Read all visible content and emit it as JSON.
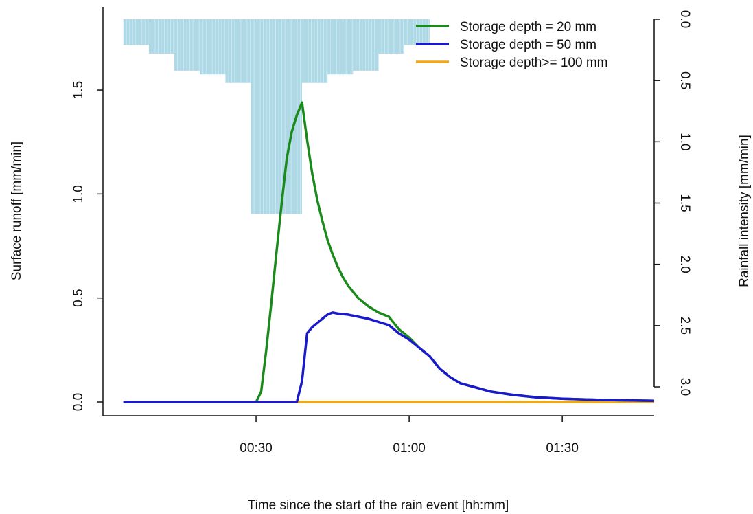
{
  "chart_data": {
    "type": "line",
    "title": "",
    "xlabel": "Time since the start of the rain event [hh:mm]",
    "ylabel": "Surface runoff [mm/min]",
    "y2label": "Rainfall intensity [mm/min]",
    "xlim": [
      0,
      108
    ],
    "ylim": [
      0,
      1.9
    ],
    "y2lim_reversed": [
      0,
      3.1
    ],
    "x_ticks": [
      {
        "v": 30,
        "label": "00:30"
      },
      {
        "v": 60,
        "label": "01:00"
      },
      {
        "v": 90,
        "label": "01:30"
      }
    ],
    "y_ticks": [
      {
        "v": 0.0,
        "label": "0.0"
      },
      {
        "v": 0.5,
        "label": "0.5"
      },
      {
        "v": 1.0,
        "label": "1.0"
      },
      {
        "v": 1.5,
        "label": "1.5"
      }
    ],
    "y2_ticks": [
      {
        "v": 0.0,
        "label": "0.0"
      },
      {
        "v": 0.5,
        "label": "0.5"
      },
      {
        "v": 1.0,
        "label": "1.0"
      },
      {
        "v": 1.5,
        "label": "1.5"
      },
      {
        "v": 2.0,
        "label": "2.0"
      },
      {
        "v": 2.5,
        "label": "2.5"
      },
      {
        "v": 3.0,
        "label": "3.0"
      }
    ],
    "legend_position": "top-right",
    "rainfall": {
      "color": "#add8e6",
      "bars": [
        {
          "x0": 4,
          "x1": 9,
          "v": 0.21
        },
        {
          "x0": 9,
          "x1": 14,
          "v": 0.28
        },
        {
          "x0": 14,
          "x1": 19,
          "v": 0.42
        },
        {
          "x0": 19,
          "x1": 24,
          "v": 0.45
        },
        {
          "x0": 24,
          "x1": 29,
          "v": 0.52
        },
        {
          "x0": 29,
          "x1": 39,
          "v": 1.59
        },
        {
          "x0": 39,
          "x1": 44,
          "v": 0.52
        },
        {
          "x0": 44,
          "x1": 49,
          "v": 0.45
        },
        {
          "x0": 49,
          "x1": 54,
          "v": 0.42
        },
        {
          "x0": 54,
          "x1": 59,
          "v": 0.28
        },
        {
          "x0": 59,
          "x1": 64,
          "v": 0.21
        }
      ]
    },
    "series": [
      {
        "name": "Storage depth = 20 mm",
        "color": "#1a8a1a",
        "points": [
          [
            4,
            0
          ],
          [
            30,
            0
          ],
          [
            31,
            0.05
          ],
          [
            32,
            0.25
          ],
          [
            33,
            0.48
          ],
          [
            34,
            0.72
          ],
          [
            35,
            0.95
          ],
          [
            36,
            1.17
          ],
          [
            37,
            1.3
          ],
          [
            38,
            1.38
          ],
          [
            39,
            1.44
          ],
          [
            40,
            1.26
          ],
          [
            41,
            1.1
          ],
          [
            42,
            0.97
          ],
          [
            43,
            0.87
          ],
          [
            44,
            0.78
          ],
          [
            45,
            0.71
          ],
          [
            46,
            0.65
          ],
          [
            47,
            0.6
          ],
          [
            48,
            0.56
          ],
          [
            49,
            0.53
          ],
          [
            50,
            0.5
          ],
          [
            52,
            0.46
          ],
          [
            54,
            0.43
          ],
          [
            56,
            0.41
          ],
          [
            58,
            0.35
          ],
          [
            60,
            0.31
          ],
          [
            62,
            0.26
          ],
          [
            64,
            0.22
          ],
          [
            66,
            0.16
          ],
          [
            68,
            0.12
          ],
          [
            70,
            0.09
          ],
          [
            73,
            0.07
          ],
          [
            76,
            0.05
          ],
          [
            80,
            0.035
          ],
          [
            85,
            0.022
          ],
          [
            90,
            0.016
          ],
          [
            95,
            0.012
          ],
          [
            100,
            0.009
          ],
          [
            108,
            0.006
          ]
        ]
      },
      {
        "name": "Storage depth = 50 mm",
        "color": "#1a1acc",
        "points": [
          [
            4,
            0
          ],
          [
            38,
            0
          ],
          [
            39,
            0.1
          ],
          [
            40,
            0.33
          ],
          [
            41,
            0.36
          ],
          [
            42,
            0.38
          ],
          [
            43,
            0.4
          ],
          [
            44,
            0.42
          ],
          [
            45,
            0.43
          ],
          [
            46,
            0.425
          ],
          [
            48,
            0.42
          ],
          [
            50,
            0.41
          ],
          [
            52,
            0.4
          ],
          [
            54,
            0.385
          ],
          [
            56,
            0.37
          ],
          [
            58,
            0.33
          ],
          [
            60,
            0.3
          ],
          [
            62,
            0.26
          ],
          [
            64,
            0.22
          ],
          [
            66,
            0.16
          ],
          [
            68,
            0.12
          ],
          [
            70,
            0.09
          ],
          [
            73,
            0.07
          ],
          [
            76,
            0.05
          ],
          [
            80,
            0.035
          ],
          [
            85,
            0.022
          ],
          [
            90,
            0.016
          ],
          [
            95,
            0.012
          ],
          [
            100,
            0.009
          ],
          [
            108,
            0.006
          ]
        ]
      },
      {
        "name": "Storage depth>= 100 mm",
        "color": "#f0a818",
        "points": [
          [
            4,
            0
          ],
          [
            108,
            0
          ]
        ]
      }
    ]
  }
}
